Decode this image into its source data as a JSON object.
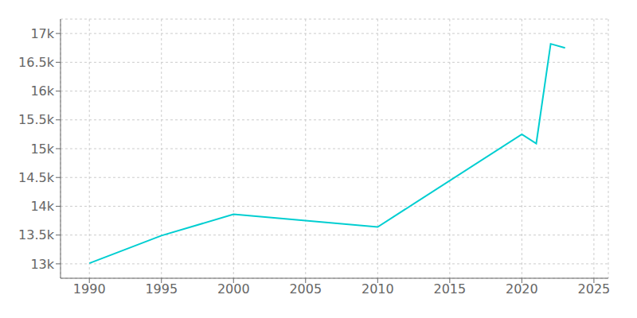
{
  "chart_data": {
    "type": "line",
    "x": [
      1990,
      1995,
      2000,
      2005,
      2010,
      2020,
      2021,
      2022,
      2023
    ],
    "values": [
      13010,
      13490,
      13860,
      13750,
      13640,
      15250,
      15090,
      16820,
      16750
    ],
    "color": "#00CED1",
    "xlim": [
      1988,
      2026
    ],
    "ylim": [
      12750,
      17250
    ],
    "xticks": [
      1990,
      1995,
      2000,
      2005,
      2010,
      2015,
      2020,
      2025
    ],
    "yticks": [
      {
        "value": 13000,
        "label": "13k"
      },
      {
        "value": 13500,
        "label": "13.5k"
      },
      {
        "value": 14000,
        "label": "14k"
      },
      {
        "value": 14500,
        "label": "14.5k"
      },
      {
        "value": 15000,
        "label": "15k"
      },
      {
        "value": 15500,
        "label": "15.5k"
      },
      {
        "value": 16000,
        "label": "16k"
      },
      {
        "value": 16500,
        "label": "16.5k"
      },
      {
        "value": 17000,
        "label": "17k"
      }
    ],
    "grid": true
  }
}
